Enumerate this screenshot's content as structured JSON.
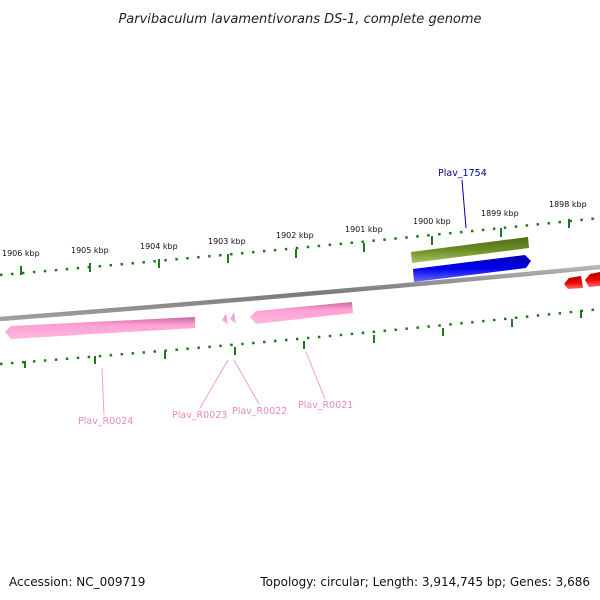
{
  "title": "Parvibaculum lavamentivorans DS-1, complete genome",
  "footer": {
    "accession": "Accession: NC_009719",
    "summary": "Topology: circular; Length: 3,914,745 bp; Genes: 3,686"
  },
  "colors": {
    "backbone": "#8a8a8a",
    "tick": "#1f7a1f",
    "rrna_gene": "#ff9fd2",
    "rrna_label": "#e58bbf",
    "gene_olive": "#6b8e23",
    "gene_blue": "#0000ee",
    "gene_red": "#ee0000",
    "blue_label": "#000099"
  },
  "ruler": {
    "labels": [
      "1906 kbp",
      "1905 kbp",
      "1904 kbp",
      "1903 kbp",
      "1902 kbp",
      "1901 kbp",
      "1900 kbp",
      "1899 kbp",
      "1898 kbp"
    ]
  },
  "genes": [
    {
      "id": "Plav_1754",
      "strand": "forward",
      "color": "olive"
    },
    {
      "id": "Plav_1754_cds",
      "strand": "forward",
      "color": "blue"
    },
    {
      "id": "neighbor_red",
      "strand": "reverse",
      "color": "red"
    },
    {
      "id": "Plav_R0024",
      "strand": "reverse",
      "color": "pink"
    },
    {
      "id": "Plav_R0023",
      "strand": "reverse",
      "color": "pink"
    },
    {
      "id": "Plav_R0022",
      "strand": "reverse",
      "color": "pink"
    },
    {
      "id": "Plav_R0021",
      "strand": "reverse",
      "color": "pink"
    }
  ],
  "labels": {
    "blue_gene": "Plav_1754",
    "r24": "Plav_R0024",
    "r23": "Plav_R0023",
    "r22": "Plav_R0022",
    "r21": "Plav_R0021"
  }
}
